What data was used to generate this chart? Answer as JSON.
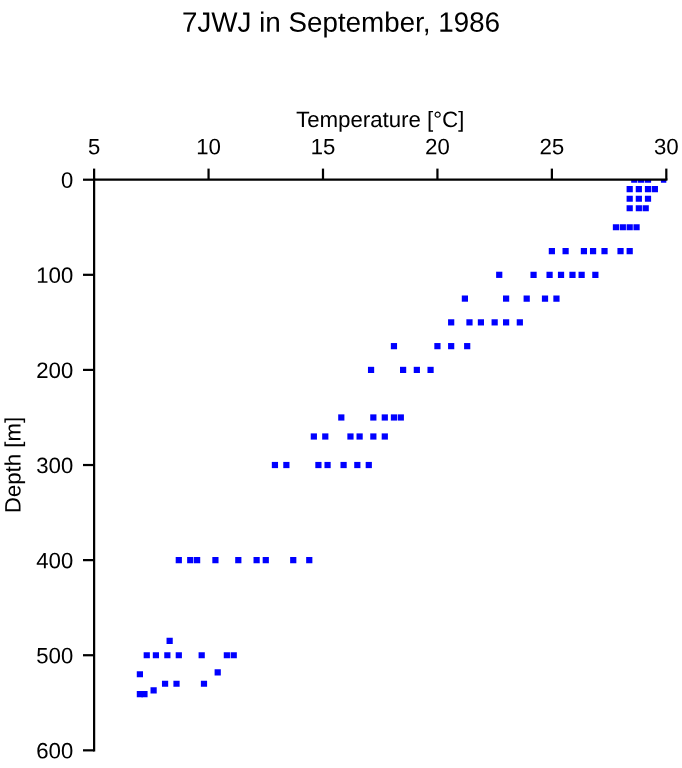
{
  "chart_data": {
    "type": "scatter",
    "title": "7JWJ in September, 1986",
    "xlabel": "Temperature [°C]",
    "ylabel": "Depth [m]",
    "xlim": [
      5,
      30
    ],
    "xticks": [
      5,
      10,
      15,
      20,
      25,
      30
    ],
    "ylim": [
      600,
      0
    ],
    "yticks": [
      0,
      100,
      200,
      300,
      400,
      500,
      600
    ],
    "grid": false,
    "marker": "square",
    "series": [
      {
        "color": "#0000ff",
        "x": [
          28.6,
          28.9,
          29.2,
          29.9,
          28.4,
          28.8,
          29.2,
          29.5,
          28.4,
          28.8,
          29.2,
          28.4,
          28.8,
          29.1,
          27.8,
          28.1,
          28.4,
          28.7,
          25.0,
          25.6,
          26.4,
          26.8,
          27.3,
          28.0,
          28.4,
          22.7,
          24.2,
          24.9,
          25.4,
          25.9,
          26.3,
          26.9,
          21.2,
          23.0,
          23.9,
          24.7,
          25.2,
          20.6,
          21.4,
          21.9,
          22.5,
          23.0,
          23.6,
          18.1,
          20.0,
          20.6,
          21.3,
          17.1,
          18.5,
          19.1,
          19.7,
          15.8,
          17.2,
          17.7,
          18.1,
          18.4,
          14.6,
          15.1,
          16.2,
          16.6,
          17.2,
          17.7,
          12.9,
          13.4,
          14.8,
          15.2,
          15.9,
          16.5,
          17.0,
          8.7,
          9.2,
          9.5,
          10.3,
          11.3,
          12.1,
          12.5,
          13.7,
          14.4,
          8.3,
          7.3,
          7.7,
          8.2,
          8.7,
          9.7,
          10.8,
          11.1,
          10.4,
          7.0,
          8.1,
          8.6,
          9.8,
          7.6,
          7.0,
          7.2
        ],
        "values": [
          0,
          0,
          0,
          0,
          10,
          10,
          10,
          10,
          20,
          20,
          20,
          30,
          30,
          30,
          50,
          50,
          50,
          50,
          75,
          75,
          75,
          75,
          75,
          75,
          75,
          100,
          100,
          100,
          100,
          100,
          100,
          100,
          125,
          125,
          125,
          125,
          125,
          150,
          150,
          150,
          150,
          150,
          150,
          175,
          175,
          175,
          175,
          200,
          200,
          200,
          200,
          250,
          250,
          250,
          250,
          250,
          270,
          270,
          270,
          270,
          270,
          270,
          300,
          300,
          300,
          300,
          300,
          300,
          300,
          400,
          400,
          400,
          400,
          400,
          400,
          400,
          400,
          400,
          485,
          500,
          500,
          500,
          500,
          500,
          500,
          500,
          518,
          520,
          530,
          530,
          530,
          537,
          541,
          541
        ]
      }
    ]
  }
}
